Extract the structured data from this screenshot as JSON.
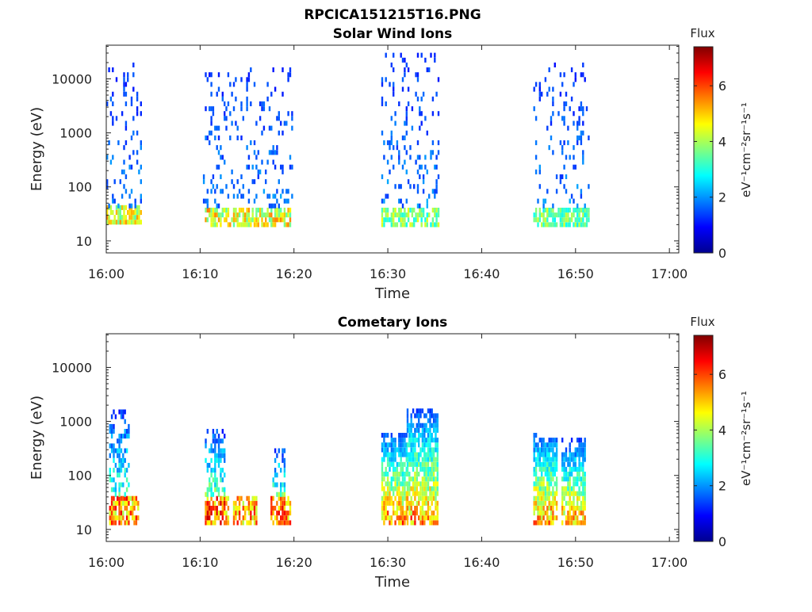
{
  "page": {
    "title": "RPCICA151215T16.PNG"
  },
  "chart_data": [
    {
      "type": "heatmap",
      "title": "Solar Wind Ions",
      "xlabel": "Time",
      "ylabel": "Energy (eV)",
      "x_ticks": [
        "16:00",
        "16:10",
        "16:20",
        "16:30",
        "16:40",
        "16:50",
        "17:00"
      ],
      "y_ticks": [
        "10",
        "100",
        "1000",
        "10000"
      ],
      "y_scale": "log",
      "ylim": [
        6,
        42000
      ],
      "xlim_minutes": [
        0,
        61
      ],
      "colorbar": {
        "label": "Flux",
        "units": "eV⁻¹cm⁻²sr⁻¹s⁻¹",
        "ticks": [
          "0",
          "2",
          "4",
          "6"
        ],
        "range": [
          0,
          7.4
        ],
        "colormap": "jet"
      },
      "clusters": [
        {
          "t_start": 0,
          "t_end": 3.7,
          "energy_low": 20,
          "energy_high": 40,
          "peak_flux": 5.5,
          "type": "core"
        },
        {
          "t_start": 0,
          "t_end": 3.7,
          "energy_low": 40,
          "energy_high": 18000,
          "peak_flux": 1.8,
          "type": "sparse"
        },
        {
          "t_start": 10.5,
          "t_end": 19.5,
          "energy_low": 18,
          "energy_high": 40,
          "peak_flux": 5.6,
          "type": "core"
        },
        {
          "t_start": 10.3,
          "t_end": 19.8,
          "energy_low": 40,
          "energy_high": 14000,
          "peak_flux": 1.8,
          "type": "sparse"
        },
        {
          "t_start": 29.3,
          "t_end": 35.5,
          "energy_low": 18,
          "energy_high": 40,
          "peak_flux": 4.6,
          "type": "core"
        },
        {
          "t_start": 29.3,
          "t_end": 35.5,
          "energy_low": 40,
          "energy_high": 25000,
          "peak_flux": 1.8,
          "type": "sparse"
        },
        {
          "t_start": 45.5,
          "t_end": 51.5,
          "energy_low": 18,
          "energy_high": 40,
          "peak_flux": 4.4,
          "type": "core"
        },
        {
          "t_start": 45.5,
          "t_end": 51.5,
          "energy_low": 40,
          "energy_high": 20000,
          "peak_flux": 1.8,
          "type": "sparse"
        }
      ]
    },
    {
      "type": "heatmap",
      "title": "Cometary Ions",
      "xlabel": "Time",
      "ylabel": "Energy (eV)",
      "x_ticks": [
        "16:00",
        "16:10",
        "16:20",
        "16:30",
        "16:40",
        "16:50",
        "17:00"
      ],
      "y_ticks": [
        "10",
        "100",
        "1000",
        "10000"
      ],
      "y_scale": "log",
      "ylim": [
        6,
        42000
      ],
      "xlim_minutes": [
        0,
        61
      ],
      "colorbar": {
        "label": "Flux",
        "units": "eV⁻¹cm⁻²sr⁻¹s⁻¹",
        "ticks": [
          "0",
          "2",
          "4",
          "6"
        ],
        "range": [
          0,
          7.4
        ],
        "colormap": "jet"
      },
      "clusters": [
        {
          "t_start": 0.3,
          "t_end": 3.5,
          "energy_low": 12,
          "energy_high": 40,
          "peak_flux": 6.6,
          "type": "core"
        },
        {
          "t_start": 0.3,
          "t_end": 2.5,
          "energy_low": 40,
          "energy_high": 1500,
          "peak_flux": 3.0,
          "type": "plume"
        },
        {
          "t_start": 10.5,
          "t_end": 13.0,
          "energy_low": 12,
          "energy_high": 40,
          "peak_flux": 7.0,
          "type": "core"
        },
        {
          "t_start": 13.5,
          "t_end": 16.0,
          "energy_low": 12,
          "energy_high": 40,
          "peak_flux": 6.6,
          "type": "core"
        },
        {
          "t_start": 17.5,
          "t_end": 19.5,
          "energy_low": 12,
          "energy_high": 40,
          "peak_flux": 6.8,
          "type": "core"
        },
        {
          "t_start": 10.5,
          "t_end": 12.5,
          "energy_low": 40,
          "energy_high": 700,
          "peak_flux": 3.2,
          "type": "plume"
        },
        {
          "t_start": 17.7,
          "t_end": 19.0,
          "energy_low": 40,
          "energy_high": 300,
          "peak_flux": 3.2,
          "type": "plume"
        },
        {
          "t_start": 29.3,
          "t_end": 32.0,
          "energy_low": 12,
          "energy_high": 600,
          "peak_flux": 6.2,
          "type": "band"
        },
        {
          "t_start": 32.0,
          "t_end": 35.3,
          "energy_low": 12,
          "energy_high": 1600,
          "peak_flux": 6.0,
          "type": "band"
        },
        {
          "t_start": 45.5,
          "t_end": 48.0,
          "energy_low": 12,
          "energy_high": 600,
          "peak_flux": 6.0,
          "type": "band"
        },
        {
          "t_start": 48.5,
          "t_end": 51.0,
          "energy_low": 12,
          "energy_high": 420,
          "peak_flux": 5.8,
          "type": "band"
        }
      ]
    }
  ]
}
